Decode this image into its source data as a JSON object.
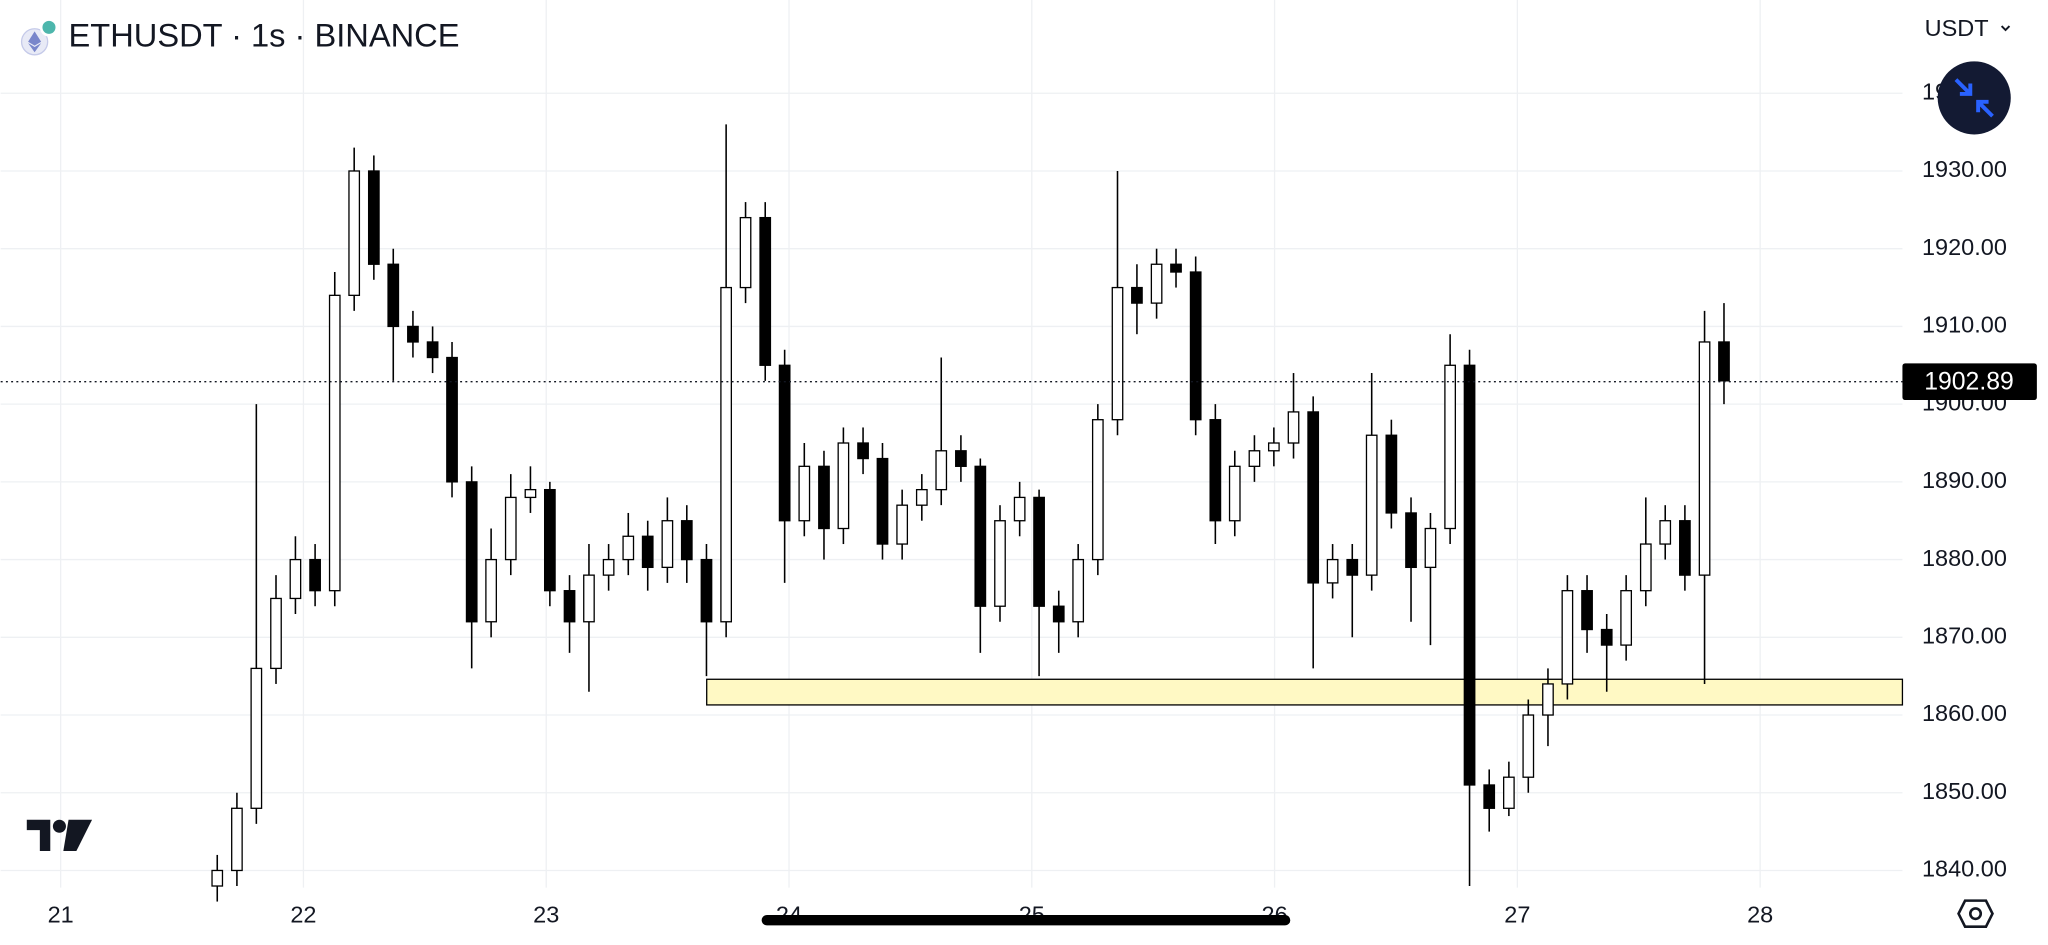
{
  "chart_data": {
    "type": "candlestick",
    "title": "ETHUSDT · 1s · BINANCE",
    "currency": "USDT",
    "last_price": {
      "value": 1902.89,
      "label": "1902.89"
    },
    "xlim": [
      20.753,
      28.586
    ],
    "xticks": [
      21,
      22,
      23,
      24,
      25,
      26,
      27,
      28
    ],
    "ylim": [
      1837.8,
      1952
    ],
    "yticks": [
      {
        "value": 1840,
        "label": "1840.00"
      },
      {
        "value": 1850,
        "label": "1850.00"
      },
      {
        "value": 1860,
        "label": "1860.00"
      },
      {
        "value": 1870,
        "label": "1870.00"
      },
      {
        "value": 1880,
        "label": "1880.00"
      },
      {
        "value": 1890,
        "label": "1890.00"
      },
      {
        "value": 1900,
        "label": "1900.00"
      },
      {
        "value": 1910,
        "label": "1910.00"
      },
      {
        "value": 1920,
        "label": "1920.00"
      },
      {
        "value": 1930,
        "label": "1930.00"
      },
      {
        "value": 1940,
        "label": "1940.00"
      }
    ],
    "grid": true,
    "up_color": "#ffffff",
    "down_color": "#000000",
    "zone_color": "#fff9c4",
    "x": [
      21.645,
      21.726,
      21.806,
      21.887,
      21.967,
      22.048,
      22.129,
      22.209,
      22.29,
      22.37,
      22.451,
      22.532,
      22.612,
      22.693,
      22.773,
      22.854,
      22.935,
      23.015,
      23.096,
      23.176,
      23.257,
      23.338,
      23.418,
      23.499,
      23.579,
      23.66,
      23.741,
      23.821,
      23.902,
      23.982,
      24.063,
      24.144,
      24.224,
      24.305,
      24.385,
      24.466,
      24.547,
      24.627,
      24.708,
      24.788,
      24.869,
      24.95,
      25.03,
      25.111,
      25.191,
      25.272,
      25.353,
      25.433,
      25.514,
      25.594,
      25.675,
      25.756,
      25.836,
      25.917,
      25.997,
      26.078,
      26.159,
      26.239,
      26.32,
      26.4,
      26.481,
      26.562,
      26.642,
      26.723,
      26.803,
      26.884,
      26.965,
      27.045,
      27.126,
      27.206,
      27.287,
      27.368,
      27.448,
      27.529,
      27.609,
      27.69,
      27.771,
      27.851
    ],
    "open": [
      1838,
      1840,
      1848,
      1866,
      1875,
      1880,
      1876,
      1914,
      1930,
      1918,
      1910,
      1908,
      1906,
      1890,
      1872,
      1880,
      1888,
      1889,
      1876,
      1872,
      1878,
      1880,
      1883,
      1879,
      1885,
      1880,
      1872,
      1915,
      1924,
      1905,
      1885,
      1892,
      1884,
      1895,
      1893,
      1882,
      1887,
      1889,
      1894,
      1892,
      1874,
      1885,
      1888,
      1874,
      1872,
      1880,
      1898,
      1915,
      1913,
      1918,
      1917,
      1898,
      1885,
      1892,
      1894,
      1895,
      1899,
      1877,
      1880,
      1878,
      1896,
      1886,
      1879,
      1884,
      1905,
      1851,
      1848,
      1852,
      1860,
      1864,
      1876,
      1871,
      1869,
      1876,
      1882,
      1885,
      1878,
      1908
    ],
    "high": [
      1842,
      1850,
      1900,
      1878,
      1883,
      1882,
      1917,
      1933,
      1932,
      1920,
      1912,
      1910,
      1908,
      1892,
      1884,
      1891,
      1892,
      1890,
      1878,
      1882,
      1882,
      1886,
      1885,
      1888,
      1887,
      1882,
      1936,
      1926,
      1926,
      1907,
      1895,
      1894,
      1897,
      1897,
      1895,
      1889,
      1891,
      1906,
      1896,
      1893,
      1887,
      1890,
      1889,
      1876,
      1882,
      1900,
      1930,
      1918,
      1920,
      1920,
      1919,
      1900,
      1894,
      1896,
      1897,
      1904,
      1901,
      1882,
      1882,
      1904,
      1898,
      1888,
      1886,
      1909,
      1907,
      1853,
      1854,
      1862,
      1866,
      1878,
      1878,
      1873,
      1878,
      1888,
      1887,
      1887,
      1912,
      1913
    ],
    "low": [
      1836,
      1838,
      1846,
      1864,
      1873,
      1874,
      1874,
      1912,
      1916,
      1903,
      1906,
      1904,
      1888,
      1866,
      1870,
      1878,
      1886,
      1874,
      1868,
      1863,
      1876,
      1878,
      1876,
      1877,
      1877,
      1865,
      1870,
      1913,
      1903,
      1877,
      1883,
      1880,
      1882,
      1891,
      1880,
      1880,
      1885,
      1887,
      1890,
      1868,
      1872,
      1883,
      1865,
      1868,
      1870,
      1878,
      1896,
      1909,
      1911,
      1915,
      1896,
      1882,
      1883,
      1890,
      1892,
      1893,
      1866,
      1875,
      1870,
      1876,
      1884,
      1872,
      1869,
      1882,
      1838,
      1845,
      1847,
      1850,
      1856,
      1862,
      1868,
      1863,
      1867,
      1874,
      1880,
      1876,
      1864,
      1900
    ],
    "close": [
      1840,
      1848,
      1866,
      1875,
      1880,
      1876,
      1914,
      1930,
      1918,
      1910,
      1908,
      1906,
      1890,
      1872,
      1880,
      1888,
      1889,
      1876,
      1872,
      1878,
      1880,
      1883,
      1879,
      1885,
      1880,
      1872,
      1915,
      1924,
      1905,
      1885,
      1892,
      1884,
      1895,
      1893,
      1882,
      1887,
      1889,
      1894,
      1892,
      1874,
      1885,
      1888,
      1874,
      1872,
      1880,
      1898,
      1915,
      1913,
      1918,
      1917,
      1898,
      1885,
      1892,
      1894,
      1895,
      1899,
      1877,
      1880,
      1878,
      1896,
      1886,
      1879,
      1884,
      1905,
      1851,
      1848,
      1852,
      1860,
      1864,
      1876,
      1871,
      1869,
      1876,
      1882,
      1885,
      1878,
      1908,
      1903
    ],
    "zones": [
      {
        "x0": 23.661,
        "low": 1861.3,
        "high": 1864.6
      }
    ]
  }
}
